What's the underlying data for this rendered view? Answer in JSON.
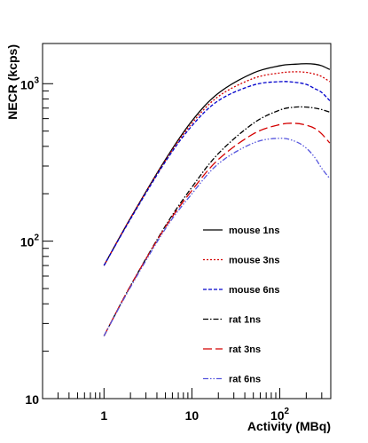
{
  "chart_data": {
    "type": "line",
    "xlabel": "Activity (MBq)",
    "ylabel": "NECR (kcps)",
    "x_scale": "log",
    "y_scale": "log",
    "xlim": [
      0.2,
      380
    ],
    "ylim": [
      10,
      1800
    ],
    "x_ticks": [
      {
        "value": 1,
        "label": "1"
      },
      {
        "value": 10,
        "label": "10"
      },
      {
        "value": 100,
        "label": "10",
        "exponent": "2"
      }
    ],
    "y_ticks": [
      {
        "value": 10,
        "label": "10"
      },
      {
        "value": 100,
        "label": "10",
        "exponent": "2"
      },
      {
        "value": 1000,
        "label": "10",
        "exponent": "3"
      }
    ],
    "grid": false,
    "legend_position": "bottom-right",
    "series": [
      {
        "name": "mouse 1ns",
        "color": "#000000",
        "dash": "solid",
        "x": [
          1,
          2,
          5,
          10,
          20,
          50,
          100,
          150,
          200,
          250,
          300,
          370
        ],
        "y": [
          70,
          140,
          330,
          580,
          870,
          1170,
          1300,
          1330,
          1340,
          1330,
          1300,
          1230
        ]
      },
      {
        "name": "mouse 3ns",
        "color": "#d40000",
        "dash": "dotted",
        "x": [
          1,
          2,
          5,
          10,
          20,
          50,
          100,
          150,
          200,
          250,
          300,
          370
        ],
        "y": [
          70,
          140,
          325,
          560,
          830,
          1080,
          1170,
          1190,
          1180,
          1150,
          1110,
          1030
        ]
      },
      {
        "name": "mouse 6ns",
        "color": "#0000cc",
        "dash": "dashed",
        "x": [
          1,
          2,
          5,
          10,
          20,
          50,
          100,
          150,
          200,
          250,
          300,
          370
        ],
        "y": [
          70,
          138,
          320,
          540,
          780,
          980,
          1030,
          1020,
          990,
          930,
          880,
          780
        ]
      },
      {
        "name": "rat 1ns",
        "color": "#000000",
        "dash": "dashdot",
        "x": [
          1,
          2,
          5,
          10,
          20,
          50,
          100,
          150,
          200,
          250,
          300,
          370
        ],
        "y": [
          25,
          52,
          125,
          220,
          360,
          560,
          680,
          710,
          710,
          700,
          685,
          660
        ]
      },
      {
        "name": "rat 3ns",
        "color": "#d40000",
        "dash": "longdash",
        "x": [
          1,
          2,
          5,
          10,
          20,
          50,
          100,
          150,
          200,
          250,
          300,
          370
        ],
        "y": [
          25,
          52,
          123,
          210,
          330,
          480,
          550,
          560,
          545,
          520,
          480,
          420
        ]
      },
      {
        "name": "rat 6ns",
        "color": "#5555dd",
        "dash": "dashdotdot",
        "x": [
          1,
          2,
          5,
          10,
          20,
          50,
          100,
          150,
          200,
          250,
          300,
          370
        ],
        "y": [
          25,
          51,
          120,
          200,
          310,
          420,
          450,
          430,
          390,
          340,
          290,
          250
        ]
      }
    ]
  }
}
